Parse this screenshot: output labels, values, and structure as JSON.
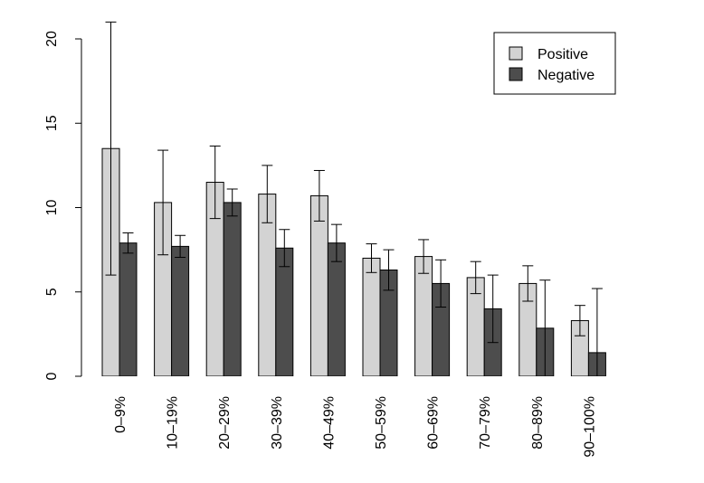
{
  "chart_data": {
    "type": "bar",
    "categories": [
      "0–9%",
      "10–19%",
      "20–29%",
      "30–39%",
      "40–49%",
      "50–59%",
      "60–69%",
      "70–79%",
      "80–89%",
      "90–100%"
    ],
    "series": [
      {
        "name": "Positive",
        "color": "#d3d3d3",
        "values": [
          13.5,
          10.3,
          11.5,
          10.8,
          10.7,
          7.0,
          7.1,
          5.85,
          5.5,
          3.3
        ],
        "errors": [
          7.5,
          3.1,
          2.15,
          1.7,
          1.5,
          0.85,
          1.0,
          0.95,
          1.05,
          0.9
        ]
      },
      {
        "name": "Negative",
        "color": "#4d4d4d",
        "values": [
          7.9,
          7.7,
          10.3,
          7.6,
          7.9,
          6.3,
          5.5,
          4.0,
          2.85,
          1.4
        ],
        "errors": [
          0.6,
          0.65,
          0.8,
          1.1,
          1.1,
          1.2,
          1.4,
          2.0,
          2.85,
          3.8
        ]
      }
    ],
    "ylim": [
      0,
      20
    ],
    "yticks": [
      0,
      5,
      10,
      15,
      20
    ],
    "legend": "top-right"
  }
}
